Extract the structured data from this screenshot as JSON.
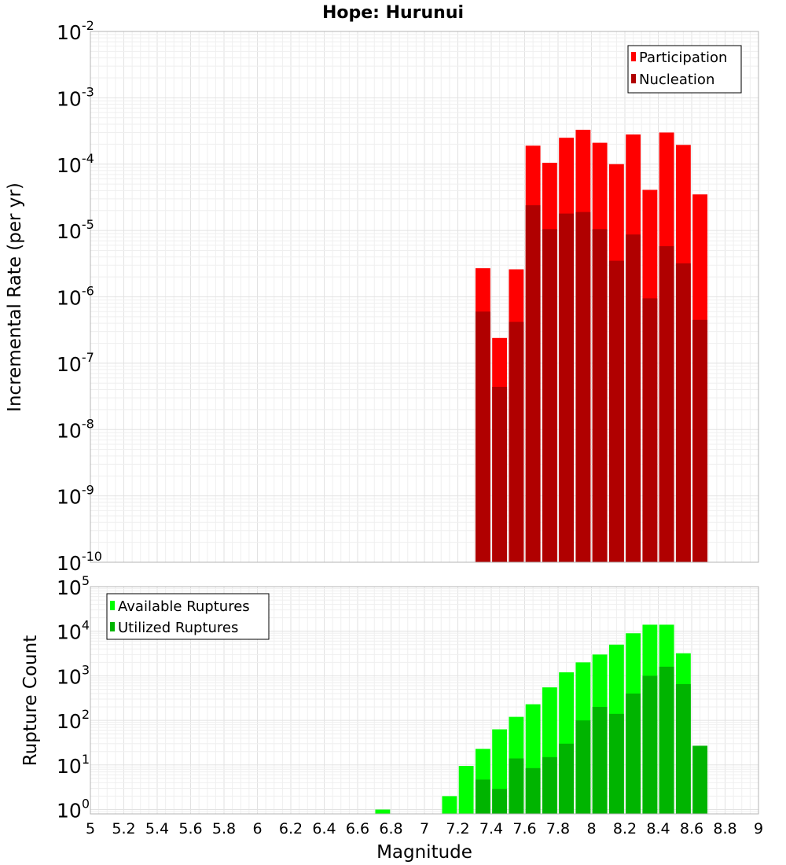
{
  "chart_data": [
    {
      "type": "bar",
      "title": "Hope: Hurunui",
      "xlabel": "",
      "ylabel": "Incremental Rate (per yr)",
      "y_scale": "log",
      "ylim": [
        1e-10,
        0.01
      ],
      "xlim": [
        5,
        9
      ],
      "bar_width": 0.1,
      "grid": true,
      "legend_position": "top-right",
      "x": [
        7.35,
        7.45,
        7.55,
        7.65,
        7.75,
        7.85,
        7.95,
        8.05,
        8.15,
        8.25,
        8.35,
        8.45,
        8.55,
        8.65
      ],
      "series": [
        {
          "name": "Participation",
          "color": "#ff0000",
          "values": [
            2.7e-06,
            2.4e-07,
            2.6e-06,
            0.00019,
            0.000105,
            0.00025,
            0.00033,
            0.00021,
            0.0001,
            0.00028,
            4.1e-05,
            0.0003,
            0.000195,
            3.5e-05
          ]
        },
        {
          "name": "Nucleation",
          "color": "#b00000",
          "values": [
            6e-07,
            4.4e-08,
            4.2e-07,
            2.4e-05,
            1.05e-05,
            1.8e-05,
            1.9e-05,
            1.05e-05,
            3.5e-06,
            8.7e-06,
            9.5e-07,
            5.8e-06,
            3.2e-06,
            4.5e-07
          ]
        }
      ],
      "y_ticks": [
        {
          "base": "10",
          "exp": "-10"
        },
        {
          "base": "10",
          "exp": "-9"
        },
        {
          "base": "10",
          "exp": "-8"
        },
        {
          "base": "10",
          "exp": "-7"
        },
        {
          "base": "10",
          "exp": "-6"
        },
        {
          "base": "10",
          "exp": "-5"
        },
        {
          "base": "10",
          "exp": "-4"
        },
        {
          "base": "10",
          "exp": "-3"
        },
        {
          "base": "10",
          "exp": "-2"
        }
      ]
    },
    {
      "type": "bar",
      "title": "",
      "xlabel": "Magnitude",
      "ylabel": "Rupture Count",
      "y_scale": "log",
      "ylim": [
        0.8,
        100000.0
      ],
      "xlim": [
        5,
        9
      ],
      "bar_width": 0.1,
      "grid": true,
      "legend_position": "top-left",
      "x": [
        6.75,
        7.15,
        7.25,
        7.35,
        7.45,
        7.55,
        7.65,
        7.75,
        7.85,
        7.95,
        8.05,
        8.15,
        8.25,
        8.35,
        8.45,
        8.55,
        8.65
      ],
      "series": [
        {
          "name": "Available Ruptures",
          "color": "#00ff00",
          "values": [
            1,
            2,
            9.5,
            23,
            63,
            120,
            230,
            550,
            1200,
            2000,
            3000,
            5000,
            9000,
            14000,
            14000,
            3200,
            0
          ]
        },
        {
          "name": "Utilized Ruptures",
          "color": "#00b400",
          "values": [
            0,
            0,
            0,
            4.7,
            2.9,
            14,
            8.5,
            15,
            30,
            100,
            200,
            140,
            400,
            1000,
            1600,
            650,
            27
          ]
        }
      ],
      "y_ticks": [
        {
          "base": "10",
          "exp": "0"
        },
        {
          "base": "10",
          "exp": "1"
        },
        {
          "base": "10",
          "exp": "2"
        },
        {
          "base": "10",
          "exp": "3"
        },
        {
          "base": "10",
          "exp": "4"
        },
        {
          "base": "10",
          "exp": "5"
        }
      ],
      "x_ticks": [
        "5",
        "5.2",
        "5.4",
        "5.6",
        "5.8",
        "6",
        "6.2",
        "6.4",
        "6.6",
        "6.8",
        "7",
        "7.2",
        "7.4",
        "7.6",
        "7.8",
        "8",
        "8.2",
        "8.4",
        "8.6",
        "8.8",
        "9"
      ]
    }
  ]
}
